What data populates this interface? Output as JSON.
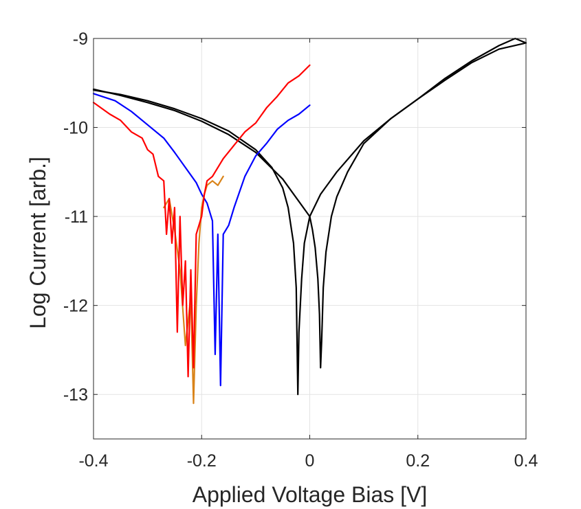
{
  "chart_data": {
    "type": "line",
    "title": "",
    "xlabel": "Applied Voltage Bias [V]",
    "ylabel": "Log Current [arb.]",
    "xlim": [
      -0.4,
      0.4
    ],
    "ylim": [
      -13.5,
      -9
    ],
    "xticks": [
      -0.4,
      -0.2,
      0,
      0.2,
      0.4
    ],
    "xtick_labels": [
      "-0.4",
      "-0.2",
      "0",
      "0.2",
      "0.4"
    ],
    "yticks": [
      -13,
      -12,
      -11,
      -10,
      -9
    ],
    "ytick_labels": [
      "-13",
      "-12",
      "-11",
      "-10",
      "-9"
    ],
    "grid": true,
    "legend": "none",
    "series": [
      {
        "color": "#000000",
        "x": [
          -0.4,
          -0.35,
          -0.3,
          -0.25,
          -0.2,
          -0.15,
          -0.1,
          -0.07,
          -0.05,
          -0.04,
          -0.03,
          -0.025,
          -0.022,
          -0.02,
          -0.015,
          -0.01,
          0.0,
          0.02,
          0.05,
          0.1,
          0.15,
          0.2,
          0.25,
          0.3,
          0.35,
          0.4
        ],
        "y": [
          -9.58,
          -9.63,
          -9.7,
          -9.79,
          -9.9,
          -10.04,
          -10.25,
          -10.45,
          -10.68,
          -10.9,
          -11.3,
          -11.8,
          -13.0,
          -12.3,
          -11.7,
          -11.3,
          -11.0,
          -10.75,
          -10.5,
          -10.15,
          -9.9,
          -9.68,
          -9.47,
          -9.27,
          -9.12,
          -9.05
        ]
      },
      {
        "color": "#000000",
        "x": [
          -0.4,
          -0.35,
          -0.3,
          -0.25,
          -0.2,
          -0.15,
          -0.1,
          -0.05,
          0.0,
          0.005,
          0.01,
          0.015,
          0.018,
          0.02,
          0.022,
          0.025,
          0.03,
          0.04,
          0.05,
          0.07,
          0.1,
          0.15,
          0.2,
          0.25,
          0.3,
          0.35,
          0.38,
          0.4
        ],
        "y": [
          -9.57,
          -9.64,
          -9.72,
          -9.81,
          -9.93,
          -10.08,
          -10.28,
          -10.58,
          -11.0,
          -11.15,
          -11.35,
          -11.7,
          -12.1,
          -12.7,
          -12.4,
          -11.8,
          -11.4,
          -11.0,
          -10.78,
          -10.5,
          -10.18,
          -9.9,
          -9.68,
          -9.45,
          -9.25,
          -9.08,
          -9.0,
          -9.05
        ]
      },
      {
        "color": "#0000ff",
        "x": [
          -0.4,
          -0.36,
          -0.33,
          -0.3,
          -0.27,
          -0.25,
          -0.23,
          -0.21,
          -0.2,
          -0.19,
          -0.18,
          -0.175,
          -0.17,
          -0.165,
          -0.16,
          -0.15,
          -0.14,
          -0.12,
          -0.1,
          -0.08,
          -0.06,
          -0.04,
          -0.02,
          0.0
        ],
        "y": [
          -9.62,
          -9.7,
          -9.82,
          -9.97,
          -10.12,
          -10.28,
          -10.45,
          -10.62,
          -10.75,
          -10.85,
          -11.05,
          -12.55,
          -11.2,
          -12.9,
          -11.2,
          -11.1,
          -10.9,
          -10.55,
          -10.32,
          -10.18,
          -10.02,
          -9.92,
          -9.85,
          -9.75
        ]
      },
      {
        "color": "#d98319",
        "x": [
          -0.27,
          -0.26,
          -0.25,
          -0.24,
          -0.23,
          -0.22,
          -0.215,
          -0.21,
          -0.205,
          -0.2,
          -0.195,
          -0.19,
          -0.18,
          -0.17,
          -0.16
        ],
        "y": [
          -10.9,
          -10.8,
          -11.15,
          -11.6,
          -12.45,
          -11.9,
          -13.1,
          -12.0,
          -11.3,
          -10.9,
          -10.75,
          -10.65,
          -10.6,
          -10.65,
          -10.55
        ]
      },
      {
        "color": "#ff0000",
        "x": [
          -0.4,
          -0.37,
          -0.35,
          -0.33,
          -0.31,
          -0.3,
          -0.29,
          -0.28,
          -0.27,
          -0.265,
          -0.26,
          -0.255,
          -0.25,
          -0.245,
          -0.24,
          -0.235,
          -0.23,
          -0.225,
          -0.22,
          -0.215,
          -0.21,
          -0.2,
          -0.195,
          -0.19,
          -0.18,
          -0.16,
          -0.14,
          -0.12,
          -0.1,
          -0.08,
          -0.06,
          -0.04,
          -0.02,
          0.0
        ],
        "y": [
          -9.72,
          -9.85,
          -9.92,
          -10.05,
          -10.12,
          -10.25,
          -10.3,
          -10.55,
          -10.6,
          -11.2,
          -10.8,
          -11.3,
          -10.9,
          -12.3,
          -11.0,
          -12.0,
          -11.5,
          -12.8,
          -11.6,
          -12.7,
          -11.2,
          -11.0,
          -10.75,
          -10.6,
          -10.55,
          -10.35,
          -10.2,
          -10.05,
          -9.95,
          -9.78,
          -9.65,
          -9.5,
          -9.42,
          -9.3
        ]
      }
    ]
  }
}
